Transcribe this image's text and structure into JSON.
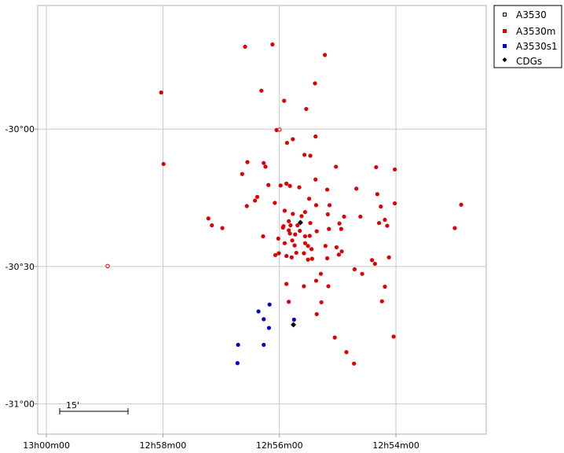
{
  "chart_data": {
    "type": "scatter",
    "title": "",
    "xlabel": "",
    "ylabel": "",
    "grid": true,
    "legend_placement": "top-right",
    "x_ticks": [
      {
        "label": "13h00m00",
        "ra_min": 780
      },
      {
        "label": "12h58m00",
        "ra_min": 778
      },
      {
        "label": "12h56m00",
        "ra_min": 776
      },
      {
        "label": "12h54m00",
        "ra_min": 774
      }
    ],
    "y_ticks": [
      {
        "label": "-30°00",
        "dec_arcmin": 0
      },
      {
        "label": "-30°30",
        "dec_arcmin": -30
      },
      {
        "label": "-31°00",
        "dec_arcmin": -60
      }
    ],
    "xlim": [
      780.15,
      772.45
    ],
    "ylim": [
      -66.6,
      27.0
    ],
    "scale_bar": {
      "label": "15'",
      "arcmin": 15
    },
    "colors": {
      "A3530": "#000000",
      "A3530m": "#dd0000",
      "A3530s1": "#0000cc",
      "CDGs": "#000000",
      "grid": "#c8c8c8",
      "frame": "#b0b0b0"
    },
    "series": [
      {
        "name": "A3530",
        "marker": "open-square",
        "points": [
          [
            776.0,
            -0.1
          ],
          [
            778.95,
            -29.9
          ]
        ]
      },
      {
        "name": "A3530m",
        "marker": "filled-square",
        "points": [
          [
            776.59,
            18.0
          ],
          [
            776.12,
            18.5
          ],
          [
            775.22,
            16.2
          ],
          [
            775.39,
            10.0
          ],
          [
            776.31,
            8.4
          ],
          [
            775.92,
            6.2
          ],
          [
            775.54,
            4.4
          ],
          [
            775.38,
            -1.6
          ],
          [
            775.77,
            -2.2
          ],
          [
            775.87,
            -3.0
          ],
          [
            775.57,
            -5.6
          ],
          [
            775.47,
            -5.8
          ],
          [
            776.05,
            -0.2
          ],
          [
            777.99,
            -7.6
          ],
          [
            776.55,
            -7.2
          ],
          [
            776.27,
            -7.4
          ],
          [
            776.24,
            -8.2
          ],
          [
            775.03,
            -8.2
          ],
          [
            774.34,
            -8.3
          ],
          [
            774.02,
            -8.8
          ],
          [
            776.64,
            -9.8
          ],
          [
            775.38,
            -11.0
          ],
          [
            776.19,
            -12.2
          ],
          [
            775.98,
            -12.3
          ],
          [
            775.82,
            -12.4
          ],
          [
            775.88,
            -11.9
          ],
          [
            775.66,
            -12.7
          ],
          [
            775.18,
            -13.2
          ],
          [
            774.68,
            -13.0
          ],
          [
            774.32,
            -14.2
          ],
          [
            776.38,
            -14.8
          ],
          [
            776.42,
            -15.6
          ],
          [
            776.56,
            -16.8
          ],
          [
            776.08,
            -16.1
          ],
          [
            775.49,
            -15.2
          ],
          [
            775.37,
            -16.6
          ],
          [
            775.14,
            -16.6
          ],
          [
            774.02,
            -16.2
          ],
          [
            774.26,
            -16.9
          ],
          [
            772.88,
            -16.5
          ],
          [
            775.91,
            -17.8
          ],
          [
            775.77,
            -18.5
          ],
          [
            775.62,
            -19.0
          ],
          [
            775.56,
            -18.1
          ],
          [
            775.17,
            -18.6
          ],
          [
            774.89,
            -19.1
          ],
          [
            774.61,
            -19.1
          ],
          [
            774.19,
            -19.8
          ],
          [
            775.84,
            -20.1
          ],
          [
            775.93,
            -21.2
          ],
          [
            775.81,
            -21.0
          ],
          [
            775.69,
            -21.0
          ],
          [
            775.47,
            -20.5
          ],
          [
            774.97,
            -20.6
          ],
          [
            774.29,
            -20.5
          ],
          [
            774.15,
            -21.1
          ],
          [
            777.22,
            -19.5
          ],
          [
            777.16,
            -21.0
          ],
          [
            776.98,
            -21.6
          ],
          [
            775.94,
            -21.5
          ],
          [
            775.84,
            -22.1
          ],
          [
            775.82,
            -22.8
          ],
          [
            775.73,
            -23.0
          ],
          [
            775.65,
            -22.2
          ],
          [
            775.56,
            -23.4
          ],
          [
            775.48,
            -23.3
          ],
          [
            775.36,
            -22.3
          ],
          [
            775.15,
            -21.8
          ],
          [
            774.94,
            -21.8
          ],
          [
            772.99,
            -21.6
          ],
          [
            776.02,
            -23.9
          ],
          [
            775.91,
            -24.9
          ],
          [
            775.78,
            -24.3
          ],
          [
            775.74,
            -25.4
          ],
          [
            776.28,
            -23.4
          ],
          [
            775.56,
            -24.9
          ],
          [
            775.51,
            -25.5
          ],
          [
            775.45,
            -26.2
          ],
          [
            775.21,
            -25.5
          ],
          [
            775.02,
            -25.8
          ],
          [
            774.93,
            -26.7
          ],
          [
            774.12,
            -28.0
          ],
          [
            774.98,
            -27.4
          ],
          [
            775.58,
            -27.1
          ],
          [
            775.71,
            -27.0
          ],
          [
            776.01,
            -27.1
          ],
          [
            776.07,
            -27.5
          ],
          [
            775.88,
            -27.7
          ],
          [
            775.79,
            -28.0
          ],
          [
            775.51,
            -28.5
          ],
          [
            775.44,
            -28.3
          ],
          [
            775.18,
            -28.2
          ],
          [
            774.36,
            -29.4
          ],
          [
            774.41,
            -28.6
          ],
          [
            774.71,
            -30.6
          ],
          [
            774.58,
            -31.6
          ],
          [
            775.29,
            -31.6
          ],
          [
            775.37,
            -33.1
          ],
          [
            775.88,
            -33.8
          ],
          [
            775.58,
            -34.3
          ],
          [
            775.16,
            -34.3
          ],
          [
            775.84,
            -37.7
          ],
          [
            775.28,
            -37.8
          ],
          [
            774.19,
            -34.4
          ],
          [
            774.24,
            -37.6
          ],
          [
            775.36,
            -40.4
          ],
          [
            774.04,
            -45.3
          ],
          [
            775.05,
            -45.5
          ],
          [
            774.85,
            -48.7
          ],
          [
            774.72,
            -51.2
          ],
          [
            778.03,
            8.0
          ]
        ]
      },
      {
        "name": "A3530s1",
        "marker": "filled-circle",
        "points": [
          [
            776.17,
            -38.3
          ],
          [
            776.36,
            -39.8
          ],
          [
            776.27,
            -41.5
          ],
          [
            776.18,
            -43.4
          ],
          [
            775.75,
            -41.6
          ],
          [
            776.27,
            -47.1
          ],
          [
            776.71,
            -47.1
          ],
          [
            776.72,
            -51.1
          ]
        ]
      },
      {
        "name": "CDGs",
        "marker": "filled-diamond",
        "points": [
          [
            775.64,
            -20.4
          ],
          [
            775.76,
            -42.7
          ]
        ]
      }
    ]
  }
}
